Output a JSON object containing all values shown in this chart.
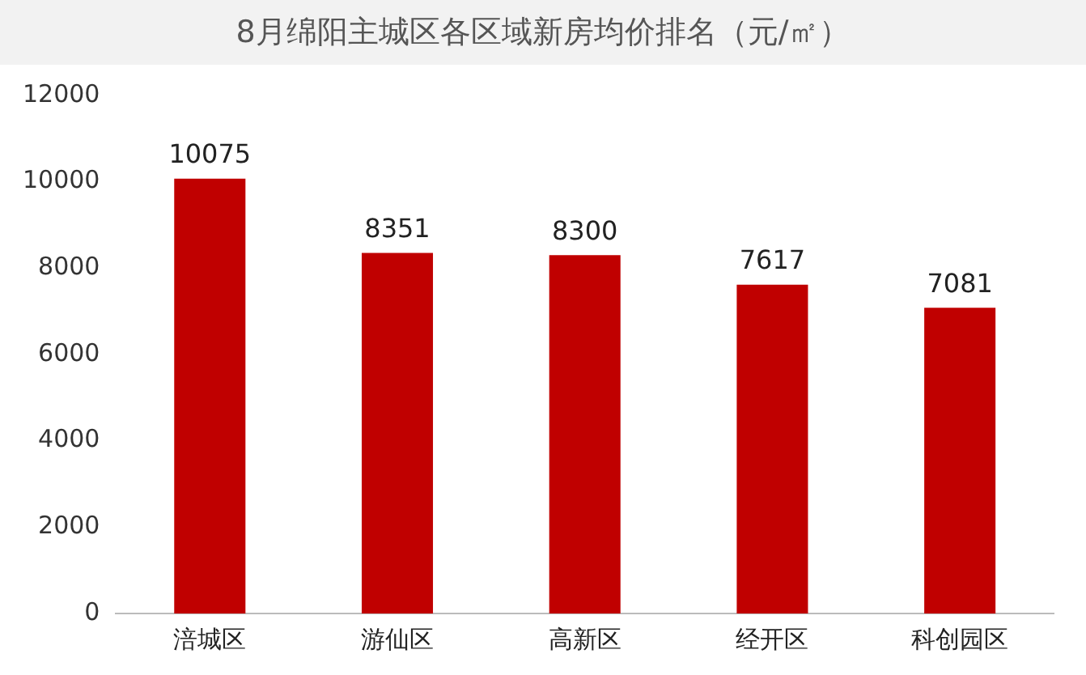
{
  "chart_data": {
    "type": "bar",
    "title": "8月绵阳主城区各区域新房均价排名（元/㎡）",
    "categories": [
      "涪城区",
      "游仙区",
      "高新区",
      "经开区",
      "科创园区"
    ],
    "values": [
      10075,
      8351,
      8300,
      7617,
      7081
    ],
    "color": "#c00000",
    "ylim": [
      0,
      12000
    ],
    "yticks": [
      0,
      2000,
      4000,
      6000,
      8000,
      10000,
      12000
    ],
    "grid": false,
    "legend": false,
    "data_labels": true
  }
}
